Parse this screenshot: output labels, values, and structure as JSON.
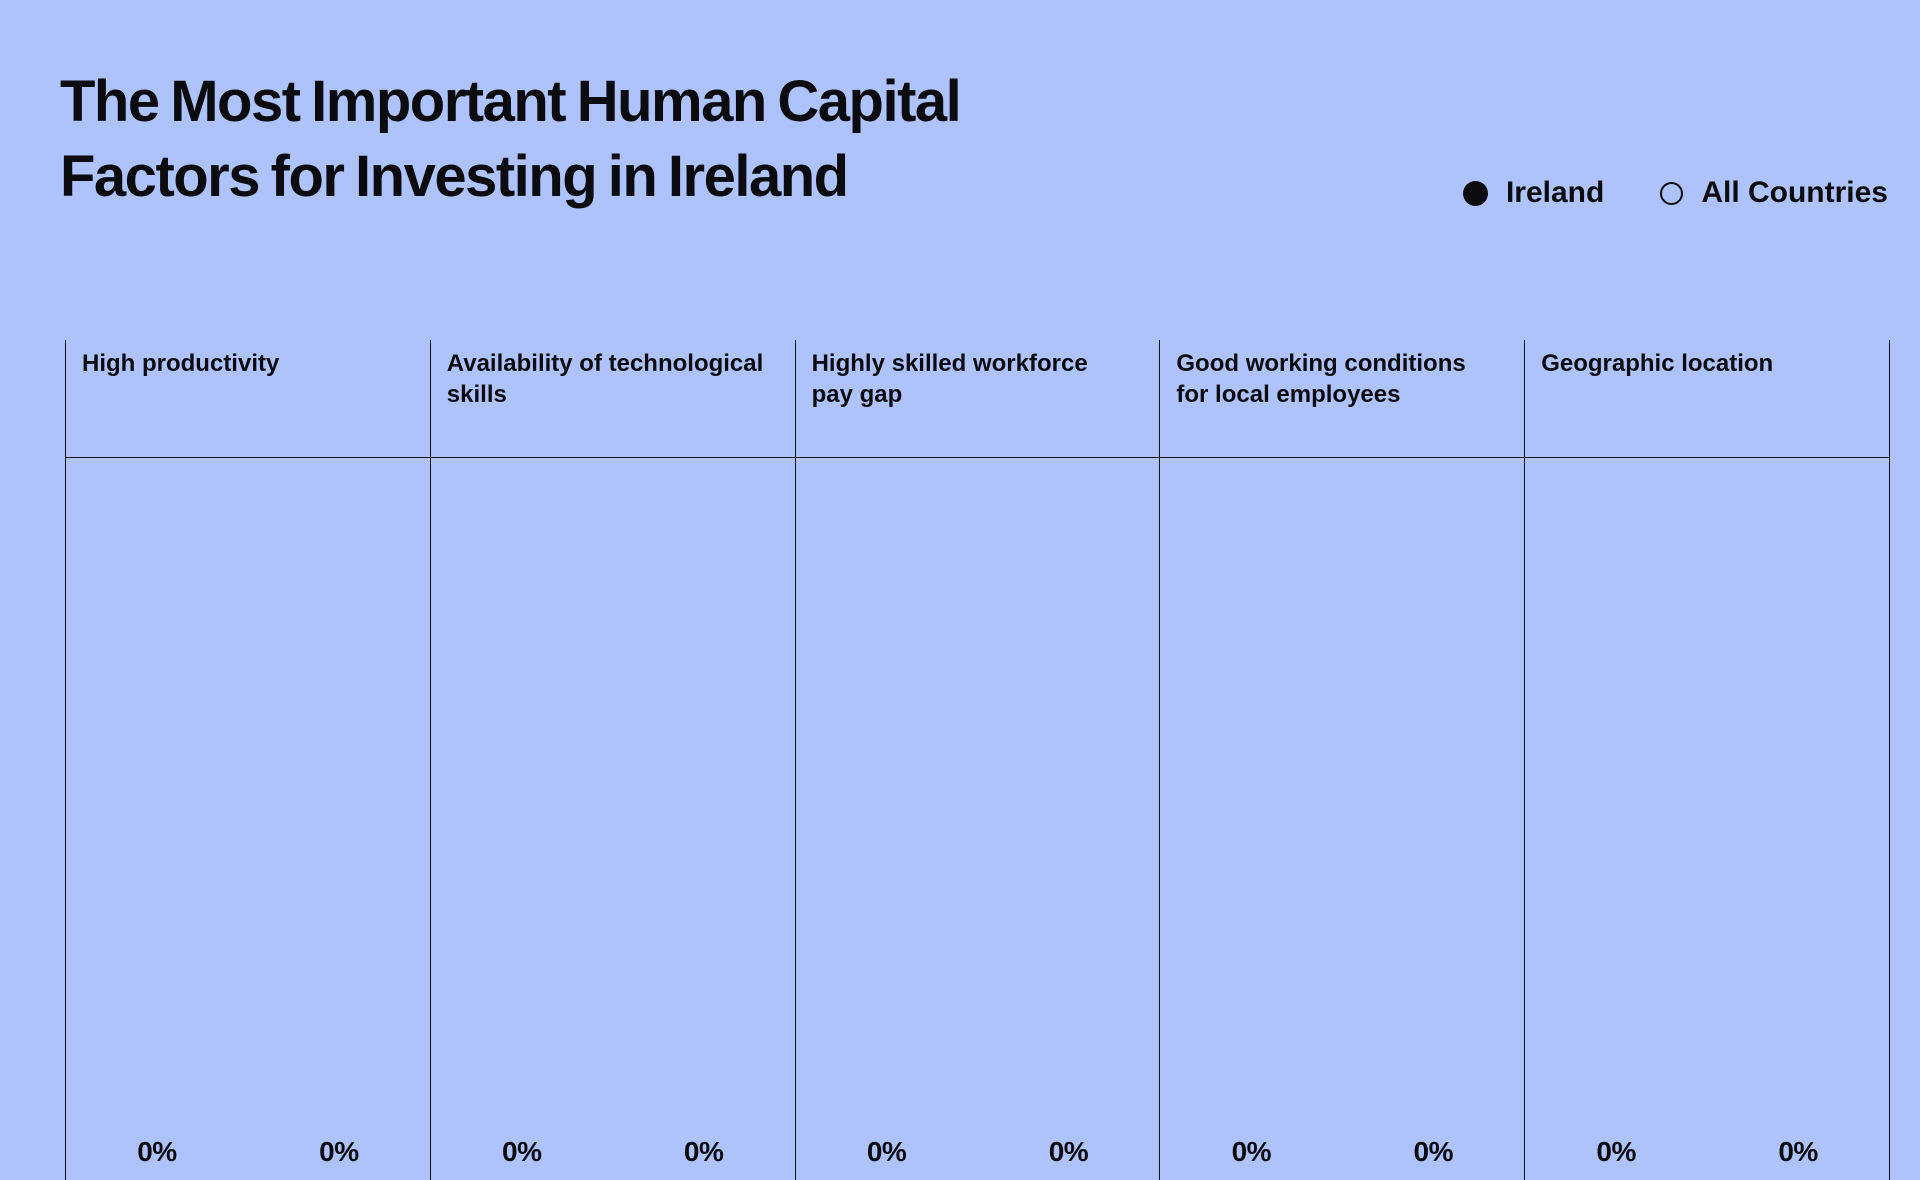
{
  "title_lines": [
    "The Most Important Human Capital",
    "Factors for Investing in Ireland"
  ],
  "legend": {
    "items": [
      {
        "label": "Ireland",
        "marker": "filled-circle"
      },
      {
        "label": "All Countries",
        "marker": "open-circle"
      }
    ]
  },
  "chart_data": {
    "type": "bar",
    "title": "The Most Important Human Capital Factors for Investing in Ireland",
    "categories": [
      "High productivity",
      "Availability of technological skills",
      "Highly skilled workforce pay gap",
      "Good working conditions for local employees",
      "Geographic location"
    ],
    "series": [
      {
        "name": "Ireland",
        "values": [
          0,
          0,
          0,
          0,
          0
        ]
      },
      {
        "name": "All Countries",
        "values": [
          0,
          0,
          0,
          0,
          0
        ]
      }
    ],
    "value_format": "percent",
    "value_labels": [
      [
        "0%",
        "0%"
      ],
      [
        "0%",
        "0%"
      ],
      [
        "0%",
        "0%"
      ],
      [
        "0%",
        "0%"
      ],
      [
        "0%",
        "0%"
      ]
    ],
    "ylim": [
      0,
      100
    ],
    "grid": false,
    "legend_position": "top-right"
  },
  "colors": {
    "background": "#aec3fa",
    "text": "#0b0b10",
    "line": "#15151a"
  }
}
